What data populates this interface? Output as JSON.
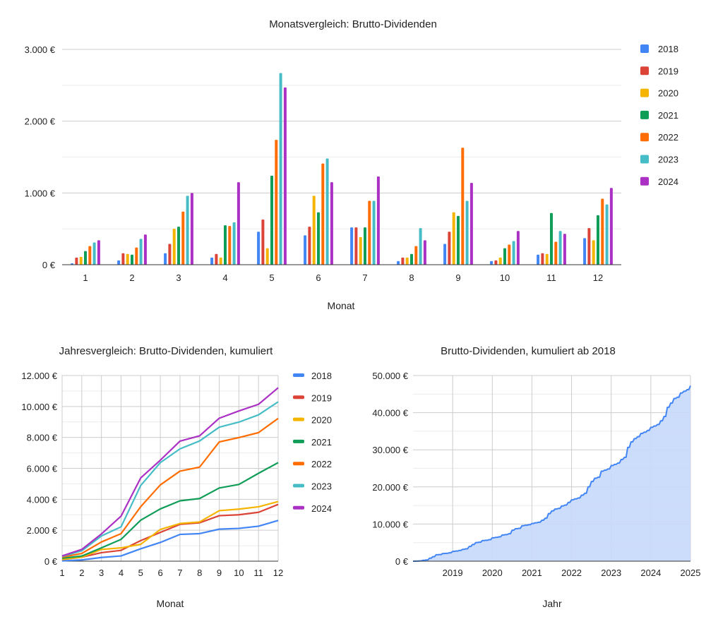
{
  "colors": [
    "#4285f4",
    "#db4437",
    "#f4b400",
    "#0f9d58",
    "#ff6d01",
    "#46bdc6",
    "#ab30c4"
  ],
  "chart_data": [
    {
      "type": "bar",
      "title": "Monatsvergleich: Brutto-Dividenden",
      "xlabel": "Monat",
      "ylabel": "",
      "ylim": [
        0,
        3000
      ],
      "yticks": [
        "0 €",
        "1.000 €",
        "2.000 €",
        "3.000 €"
      ],
      "ytick_values": [
        0,
        1000,
        2000,
        3000
      ],
      "grid": true,
      "legend": "right",
      "categories": [
        "1",
        "2",
        "3",
        "4",
        "5",
        "6",
        "7",
        "8",
        "9",
        "10",
        "11",
        "12"
      ],
      "series": [
        {
          "name": "2018",
          "values": [
            20,
            60,
            160,
            100,
            460,
            410,
            520,
            50,
            290,
            50,
            140,
            370
          ]
        },
        {
          "name": "2019",
          "values": [
            100,
            160,
            290,
            150,
            630,
            530,
            520,
            100,
            460,
            60,
            160,
            510
          ]
        },
        {
          "name": "2020",
          "values": [
            110,
            150,
            500,
            100,
            230,
            960,
            385,
            100,
            730,
            100,
            150,
            340
          ]
        },
        {
          "name": "2021",
          "values": [
            190,
            140,
            530,
            550,
            1240,
            730,
            520,
            150,
            680,
            230,
            720,
            690
          ]
        },
        {
          "name": "2022",
          "values": [
            260,
            240,
            740,
            540,
            1740,
            1410,
            890,
            260,
            1630,
            280,
            320,
            920
          ]
        },
        {
          "name": "2023",
          "values": [
            310,
            360,
            960,
            590,
            2670,
            1480,
            890,
            510,
            890,
            330,
            470,
            840
          ]
        },
        {
          "name": "2024",
          "values": [
            340,
            420,
            1000,
            1150,
            2470,
            1150,
            1230,
            340,
            1140,
            470,
            430,
            1070
          ]
        }
      ]
    },
    {
      "type": "line",
      "title": "Jahresvergleich: Brutto-Dividenden, kumuliert",
      "xlabel": "Monat",
      "ylabel": "",
      "xlim": [
        1,
        12
      ],
      "ylim": [
        0,
        12000
      ],
      "yticks": [
        "0 €",
        "2.000 €",
        "4.000 €",
        "6.000 €",
        "8.000 €",
        "10.000 €",
        "12.000 €"
      ],
      "ytick_values": [
        0,
        2000,
        4000,
        6000,
        8000,
        10000,
        12000
      ],
      "grid": true,
      "legend": "right",
      "x": [
        "1",
        "2",
        "3",
        "4",
        "5",
        "6",
        "7",
        "8",
        "9",
        "10",
        "11",
        "12"
      ],
      "series": [
        {
          "name": "2018",
          "values": [
            20,
            80,
            240,
            340,
            800,
            1210,
            1730,
            1780,
            2070,
            2120,
            2260,
            2630
          ]
        },
        {
          "name": "2019",
          "values": [
            100,
            260,
            550,
            700,
            1330,
            1860,
            2380,
            2480,
            2940,
            3000,
            3160,
            3670
          ]
        },
        {
          "name": "2020",
          "values": [
            110,
            260,
            760,
            860,
            1090,
            2050,
            2435,
            2535,
            3265,
            3365,
            3515,
            3855
          ]
        },
        {
          "name": "2021",
          "values": [
            190,
            330,
            860,
            1410,
            2650,
            3380,
            3900,
            4050,
            4730,
            4960,
            5680,
            6370
          ]
        },
        {
          "name": "2022",
          "values": [
            260,
            500,
            1240,
            1780,
            3520,
            4930,
            5820,
            6080,
            7710,
            7990,
            8310,
            9230
          ]
        },
        {
          "name": "2023",
          "values": [
            310,
            670,
            1630,
            2220,
            4890,
            6370,
            7260,
            7770,
            8660,
            8990,
            9460,
            10300
          ]
        },
        {
          "name": "2024",
          "values": [
            340,
            760,
            1760,
            2910,
            5380,
            6530,
            7760,
            8100,
            9240,
            9710,
            10140,
            11210
          ]
        }
      ]
    },
    {
      "type": "area",
      "title": "Brutto-Dividenden, kumuliert ab 2018",
      "xlabel": "Jahr",
      "ylabel": "",
      "xlim": [
        2018,
        2025
      ],
      "xticks": [
        "2019",
        "2020",
        "2021",
        "2022",
        "2023",
        "2024",
        "2025"
      ],
      "ylim": [
        0,
        50000
      ],
      "yticks": [
        "0 €",
        "10.000 €",
        "20.000 €",
        "30.000 €",
        "40.000 €",
        "50.000 €"
      ],
      "ytick_values": [
        0,
        10000,
        20000,
        30000,
        40000,
        50000
      ],
      "grid": true,
      "color": "#4285f4",
      "fill": "#c6d9fb",
      "years": [
        "2018",
        "2019",
        "2020",
        "2021",
        "2022",
        "2023",
        "2024"
      ],
      "monthly_cumulative": [
        [
          20,
          80,
          240,
          340,
          800,
          1210,
          1730,
          1780,
          2070,
          2120,
          2260,
          2630
        ],
        [
          2730,
          2890,
          3180,
          3330,
          3960,
          4490,
          5010,
          5110,
          5570,
          5630,
          5790,
          6300
        ],
        [
          6410,
          6560,
          7060,
          7160,
          7390,
          8350,
          8735,
          8835,
          9565,
          9665,
          9815,
          10155
        ],
        [
          10345,
          10485,
          11015,
          11565,
          12805,
          13535,
          14055,
          14205,
          14885,
          15115,
          15835,
          16525
        ],
        [
          16785,
          17025,
          17765,
          18305,
          20045,
          21455,
          22345,
          22605,
          24235,
          24515,
          24835,
          25755
        ],
        [
          26065,
          26425,
          27385,
          27975,
          30645,
          32125,
          33015,
          33525,
          34415,
          34745,
          35215,
          36055
        ],
        [
          36395,
          36815,
          37815,
          38965,
          41435,
          42585,
          43815,
          44155,
          45295,
          45765,
          46195,
          47265
        ]
      ]
    }
  ]
}
